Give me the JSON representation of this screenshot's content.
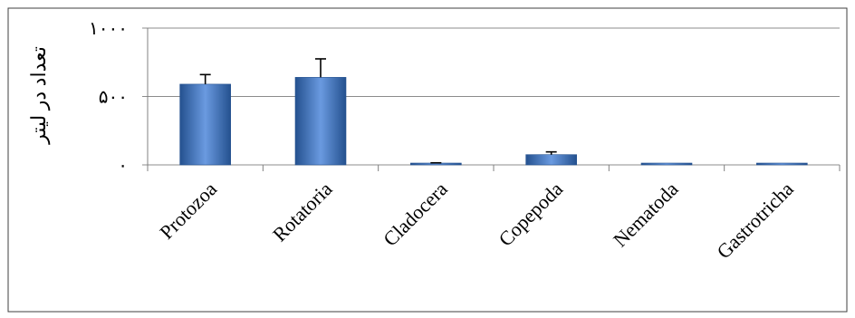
{
  "chart_data": {
    "type": "bar",
    "title": "",
    "xlabel": "",
    "ylabel": "تعداد در لیتر",
    "ylim": [
      0,
      1000
    ],
    "yticks": [
      {
        "value": 0,
        "label": "۰"
      },
      {
        "value": 500,
        "label": "۵۰۰"
      },
      {
        "value": 1000,
        "label": "۱۰۰۰"
      }
    ],
    "grid": true,
    "legend": "none",
    "categories": [
      "Protozoa",
      "Rotatoria",
      "Cladocera",
      "Copepoda",
      "Nematoda",
      "Gastrotricha"
    ],
    "values": [
      590,
      640,
      10,
      75,
      8,
      8
    ],
    "error": [
      70,
      135,
      5,
      20,
      0,
      0
    ],
    "colors": {
      "bar": "#3a73c4",
      "bar_light": "#6a9ae0",
      "bar_dark": "#24518f",
      "grid": "#8c8c8c",
      "axis": "#808080",
      "frame": "#3f3f3f",
      "text": "#000000"
    }
  }
}
